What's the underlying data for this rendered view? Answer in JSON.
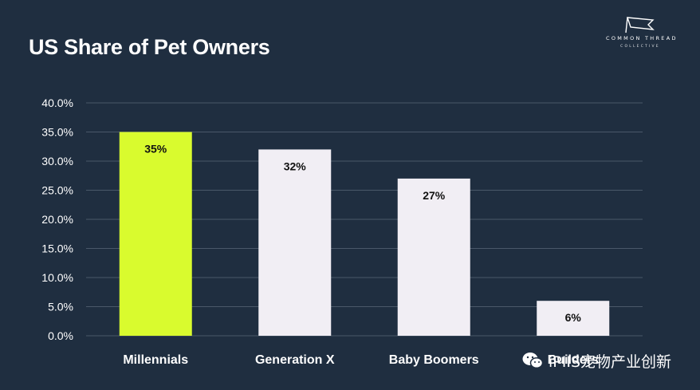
{
  "header": {
    "title": "US Share of Pet Owners"
  },
  "logo": {
    "line1": "COMMON THREAD",
    "line2": "COLLECTIVE"
  },
  "watermark": {
    "text": "iPIIS宠物产业创新"
  },
  "colors": {
    "background": "#1f2e40",
    "highlight_bar": "#d9fb2e",
    "bar": "#f1eef4",
    "grid": "#4a5869",
    "text": "#ffffff"
  },
  "chart_data": {
    "type": "bar",
    "title": "US Share of Pet Owners",
    "categories": [
      "Millennials",
      "Generation X",
      "Baby Boomers",
      "Builders"
    ],
    "values": [
      35,
      32,
      27,
      6
    ],
    "data_labels": [
      "35%",
      "32%",
      "27%",
      "6%"
    ],
    "highlight_index": 0,
    "ylim": [
      0,
      40
    ],
    "yticks": [
      "0.0%",
      "5.0%",
      "10.0%",
      "15.0%",
      "20.0%",
      "25.0%",
      "30.0%",
      "35.0%",
      "40.0%"
    ],
    "grid": true,
    "legend": "none"
  }
}
